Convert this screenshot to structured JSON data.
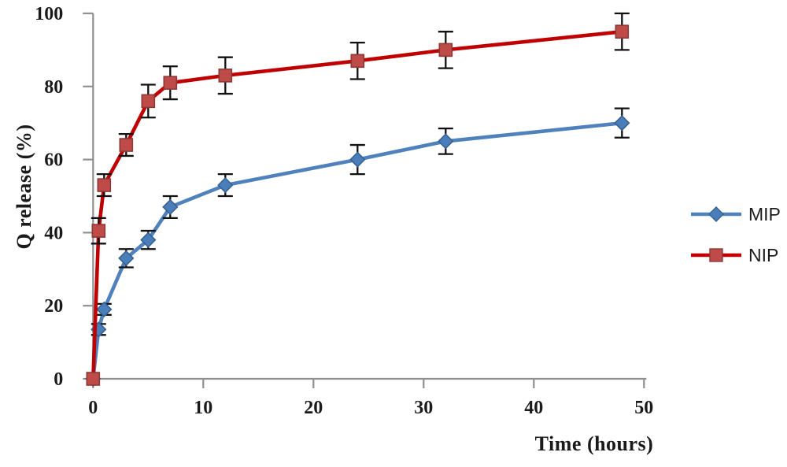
{
  "chart_data": {
    "type": "line",
    "title": "",
    "xlabel": "Time (hours)",
    "ylabel": "Q release (%)",
    "xlim": [
      0,
      50
    ],
    "ylim": [
      0,
      100
    ],
    "x_ticks": [
      0,
      10,
      20,
      30,
      40,
      50
    ],
    "y_ticks": [
      0,
      20,
      40,
      60,
      80,
      100
    ],
    "grid": false,
    "legend_position": "right-outside",
    "error_bars": true,
    "x": [
      0,
      0.5,
      1,
      3,
      5,
      7,
      12,
      24,
      32,
      48
    ],
    "series": [
      {
        "name": "MIP",
        "marker": "diamond",
        "line_color": "#4F81BD",
        "marker_fill": "#4A7EBB",
        "marker_stroke": "#38618F",
        "values": [
          0,
          13.5,
          19,
          33,
          38,
          47,
          53,
          60,
          65,
          70
        ],
        "errors": [
          0,
          1.5,
          1.5,
          2.5,
          2.5,
          3,
          3,
          4,
          3.5,
          4
        ]
      },
      {
        "name": "NIP",
        "marker": "square",
        "line_color": "#C00000",
        "marker_fill": "#BE4B48",
        "marker_stroke": "#8E3836",
        "values": [
          0,
          40.5,
          53,
          64,
          76,
          81,
          83,
          87,
          90,
          95
        ],
        "errors": [
          0,
          3.5,
          3,
          3,
          4.5,
          4.5,
          5,
          5,
          5,
          5
        ]
      }
    ],
    "error_bar_color": "#111111",
    "axis_color": "#909090",
    "tick_label_color": "#1a1a1a"
  }
}
